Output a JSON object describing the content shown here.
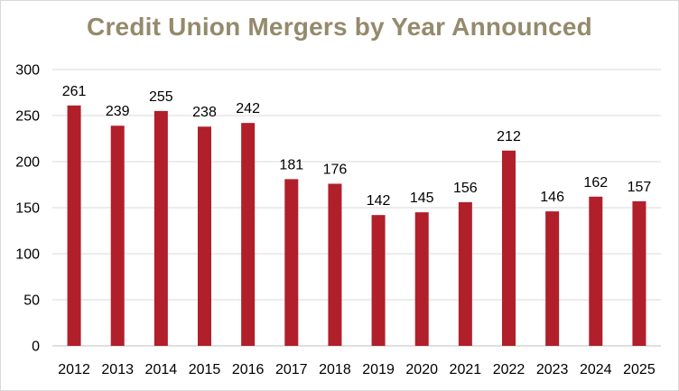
{
  "chart_data": {
    "type": "bar",
    "title": "Credit Union Mergers by Year Announced",
    "xlabel": "",
    "ylabel": "",
    "categories": [
      "2012",
      "2013",
      "2014",
      "2015",
      "2016",
      "2017",
      "2018",
      "2019",
      "2020",
      "2021",
      "2022",
      "2023",
      "2024",
      "2025"
    ],
    "values": [
      261,
      239,
      255,
      238,
      242,
      181,
      176,
      142,
      145,
      156,
      212,
      146,
      162,
      157
    ],
    "ylim": [
      0,
      300
    ],
    "yticks": [
      0,
      50,
      100,
      150,
      200,
      250,
      300
    ],
    "grid": true,
    "legend": "none",
    "data_labels": true,
    "bar_color": "#b01f2a",
    "grid_color": "#d9d9d9",
    "title_color": "#948a6c"
  }
}
